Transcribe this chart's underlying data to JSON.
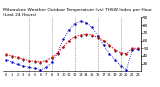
{
  "title": "Milwaukee Weather Outdoor Temperature (vs) THSW Index per Hour (Last 24 Hours)",
  "title_fontsize": 3.2,
  "hours": [
    0,
    1,
    2,
    3,
    4,
    5,
    6,
    7,
    8,
    9,
    10,
    11,
    12,
    13,
    14,
    15,
    16,
    17,
    18,
    19,
    20,
    21,
    22,
    23
  ],
  "temp": [
    42,
    40,
    38,
    36,
    34,
    33,
    32,
    34,
    38,
    44,
    52,
    60,
    65,
    67,
    68,
    67,
    64,
    60,
    54,
    48,
    44,
    43,
    50,
    50
  ],
  "thsw": [
    35,
    32,
    29,
    27,
    25,
    24,
    22,
    25,
    32,
    44,
    62,
    74,
    82,
    85,
    83,
    77,
    66,
    54,
    43,
    35,
    27,
    22,
    48,
    49
  ],
  "black_dots": [
    41,
    39,
    37,
    35,
    33,
    32,
    31,
    33,
    37,
    43,
    51,
    59,
    64,
    66,
    67,
    66,
    63,
    59,
    53,
    47,
    43,
    42,
    49,
    49
  ],
  "temp_color": "#cc0000",
  "thsw_color": "#0000cc",
  "dot_color": "#000000",
  "ylim": [
    20,
    90
  ],
  "ytick_vals": [
    30,
    40,
    50,
    60,
    70,
    80,
    90
  ],
  "ytick_labels": [
    "30",
    "40",
    "50",
    "60",
    "70",
    "80",
    "90"
  ],
  "background": "#ffffff",
  "grid_color": "#666666",
  "grid_hours": [
    4,
    8,
    12,
    16,
    20
  ],
  "fig_width": 1.6,
  "fig_height": 0.87,
  "dpi": 100
}
